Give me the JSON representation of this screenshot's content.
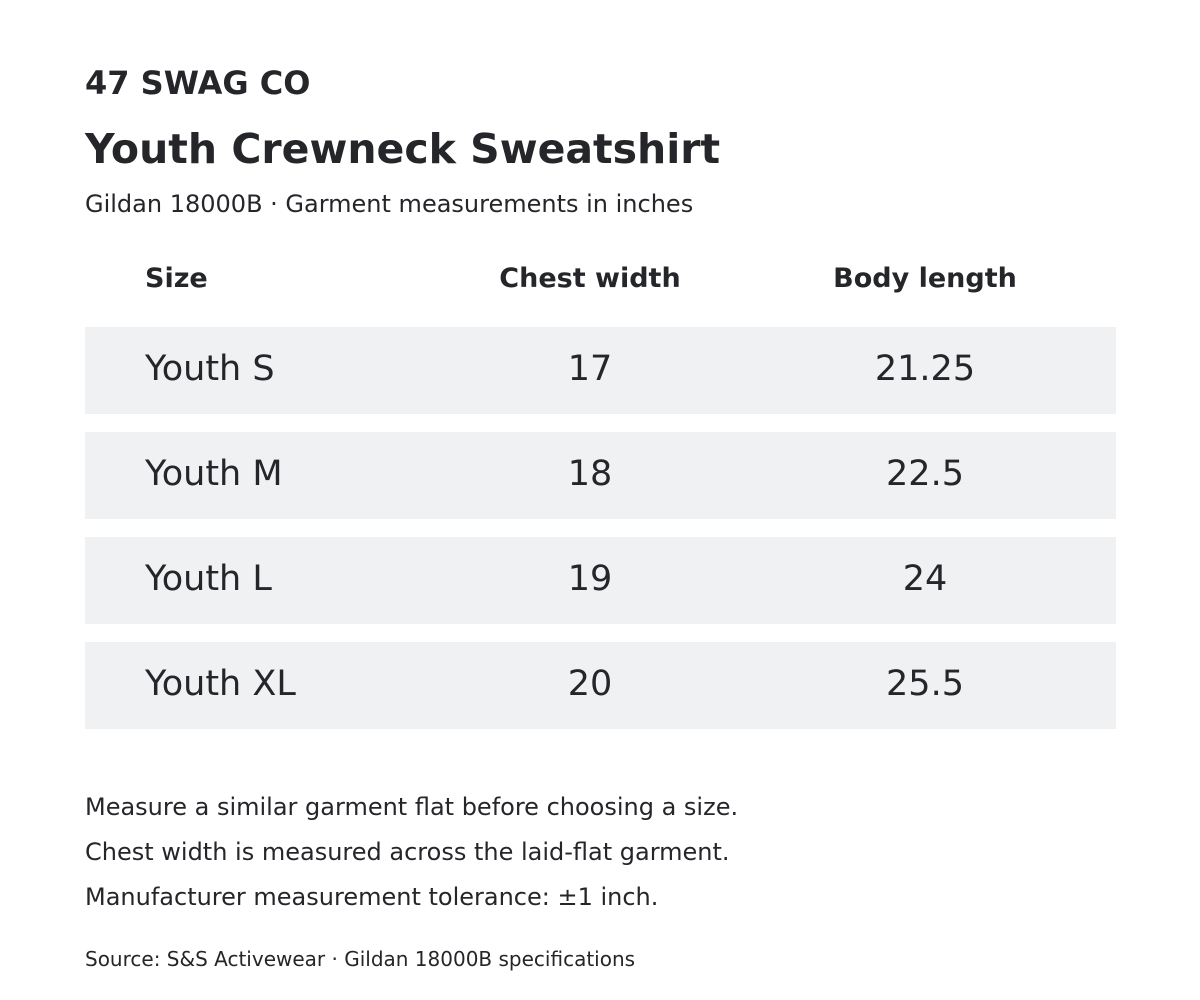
{
  "brand": "47 SWAG CO",
  "title": "Youth Crewneck Sweatshirt",
  "subtitle": "Gildan 18000B · Garment measurements in inches",
  "table": {
    "headers": {
      "size": "Size",
      "chest": "Chest width",
      "length": "Body length"
    },
    "rows": [
      {
        "size": "Youth S",
        "chest": "17",
        "length": "21.25"
      },
      {
        "size": "Youth M",
        "chest": "18",
        "length": "22.5"
      },
      {
        "size": "Youth L",
        "chest": "19",
        "length": "24"
      },
      {
        "size": "Youth XL",
        "chest": "20",
        "length": "25.5"
      }
    ],
    "row_background": "#f0f1f3"
  },
  "notes": [
    "Measure a similar garment flat before choosing a size.",
    "Chest width is measured across the laid-flat garment.",
    "Manufacturer measurement tolerance: ±1 inch."
  ],
  "source": "Source: S&S Activewear · Gildan 18000B specifications",
  "colors": {
    "text": "#25262a",
    "background": "#ffffff"
  }
}
